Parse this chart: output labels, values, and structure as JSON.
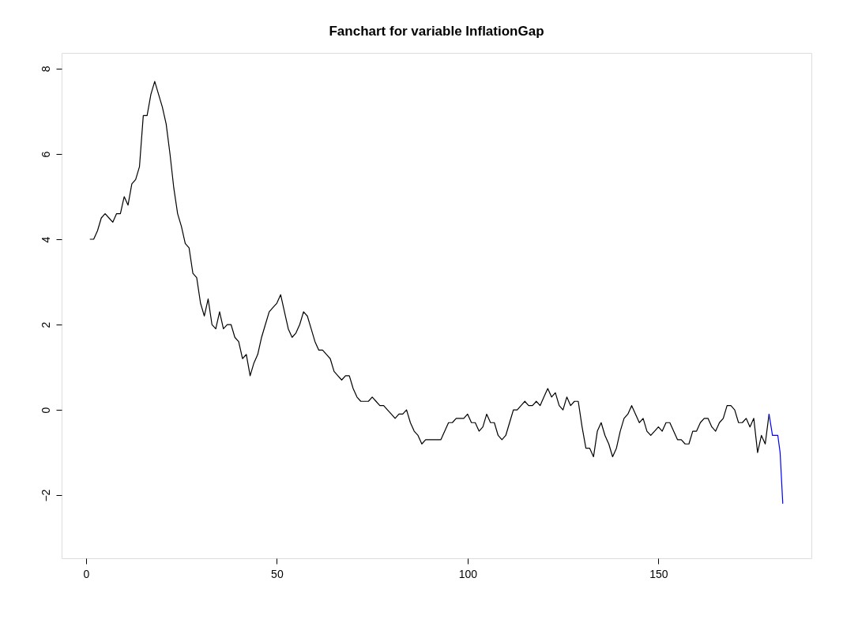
{
  "chart_data": {
    "type": "line",
    "title": "Fanchart for variable InflationGap",
    "series": [
      {
        "color": "#000000",
        "x": [
          1,
          2,
          3,
          4,
          5,
          6,
          7,
          8,
          9,
          10,
          11,
          12,
          13,
          14,
          15,
          16,
          17,
          18,
          19,
          20,
          21,
          22,
          23,
          24,
          25,
          26,
          27,
          28,
          29,
          30,
          31,
          32,
          33,
          34,
          35,
          36,
          37,
          38,
          39,
          40,
          41,
          42,
          43,
          44,
          45,
          46,
          47,
          48,
          49,
          50,
          51,
          52,
          53,
          54,
          55,
          56,
          57,
          58,
          59,
          60,
          61,
          62,
          63,
          64,
          65,
          66,
          67,
          68,
          69,
          70,
          71,
          72,
          73,
          74,
          75,
          76,
          77,
          78,
          79,
          80,
          81,
          82,
          83,
          84,
          85,
          86,
          87,
          88,
          89,
          90,
          91,
          92,
          93,
          94,
          95,
          96,
          97,
          98,
          99,
          100,
          101,
          102,
          103,
          104,
          105,
          106,
          107,
          108,
          109,
          110,
          111,
          112,
          113,
          114,
          115,
          116,
          117,
          118,
          119,
          120,
          121,
          122,
          123,
          124,
          125,
          126,
          127,
          128,
          129,
          130,
          131,
          132,
          133,
          134,
          135,
          136,
          137,
          138,
          139,
          140,
          141,
          142,
          143,
          144,
          145,
          146,
          147,
          148,
          149,
          150,
          151,
          152,
          153,
          154,
          155,
          156,
          157,
          158,
          159,
          160,
          161,
          162,
          163,
          164,
          165,
          166,
          167,
          168,
          169,
          170,
          171,
          172,
          173,
          174,
          175,
          176,
          177,
          178,
          179
        ],
        "values": [
          4.0,
          4.0,
          4.2,
          4.5,
          4.6,
          4.5,
          4.4,
          4.6,
          4.6,
          5.0,
          4.8,
          5.3,
          5.4,
          5.7,
          6.9,
          6.9,
          7.4,
          7.7,
          7.4,
          7.1,
          6.7,
          6.0,
          5.2,
          4.6,
          4.3,
          3.9,
          3.8,
          3.2,
          3.1,
          2.5,
          2.2,
          2.6,
          2.0,
          1.9,
          2.3,
          1.9,
          2.0,
          2.0,
          1.7,
          1.6,
          1.2,
          1.3,
          0.8,
          1.1,
          1.3,
          1.7,
          2.0,
          2.3,
          2.4,
          2.5,
          2.7,
          2.3,
          1.9,
          1.7,
          1.8,
          2.0,
          2.3,
          2.2,
          1.9,
          1.6,
          1.4,
          1.4,
          1.3,
          1.2,
          0.9,
          0.8,
          0.7,
          0.8,
          0.8,
          0.5,
          0.3,
          0.2,
          0.2,
          0.2,
          0.3,
          0.2,
          0.1,
          0.1,
          0.0,
          -0.1,
          -0.2,
          -0.1,
          -0.1,
          0.0,
          -0.3,
          -0.5,
          -0.6,
          -0.8,
          -0.7,
          -0.7,
          -0.7,
          -0.7,
          -0.7,
          -0.5,
          -0.3,
          -0.3,
          -0.2,
          -0.2,
          -0.2,
          -0.1,
          -0.3,
          -0.3,
          -0.5,
          -0.4,
          -0.1,
          -0.3,
          -0.3,
          -0.6,
          -0.7,
          -0.6,
          -0.3,
          0.0,
          0.0,
          0.1,
          0.2,
          0.1,
          0.1,
          0.2,
          0.1,
          0.3,
          0.5,
          0.3,
          0.4,
          0.1,
          0.0,
          0.3,
          0.1,
          0.2,
          0.2,
          -0.4,
          -0.9,
          -0.9,
          -1.1,
          -0.5,
          -0.3,
          -0.6,
          -0.8,
          -1.1,
          -0.9,
          -0.5,
          -0.2,
          -0.1,
          0.1,
          -0.1,
          -0.3,
          -0.2,
          -0.5,
          -0.6,
          -0.5,
          -0.4,
          -0.5,
          -0.3,
          -0.3,
          -0.5,
          -0.7,
          -0.7,
          -0.8,
          -0.8,
          -0.5,
          -0.5,
          -0.3,
          -0.2,
          -0.2,
          -0.4,
          -0.5,
          -0.3,
          -0.2,
          0.1,
          0.1,
          0.0,
          -0.3,
          -0.3,
          -0.2,
          -0.4,
          -0.2,
          -1.0,
          -0.6,
          -0.8,
          -0.1
        ]
      },
      {
        "color": "#0000ff",
        "x": [
          179,
          179.9,
          181.3,
          181.9,
          182.6
        ],
        "values": [
          -0.1,
          -0.6,
          -0.6,
          -1.0,
          -2.2
        ]
      }
    ],
    "xlim": [
      -6.4,
      190.1
    ],
    "ylim": [
      -3.48,
      8.37
    ],
    "xticks": [
      0,
      50,
      100,
      150
    ],
    "yticks": [
      -2,
      0,
      2,
      4,
      6,
      8
    ],
    "grid": false,
    "legend": false
  }
}
